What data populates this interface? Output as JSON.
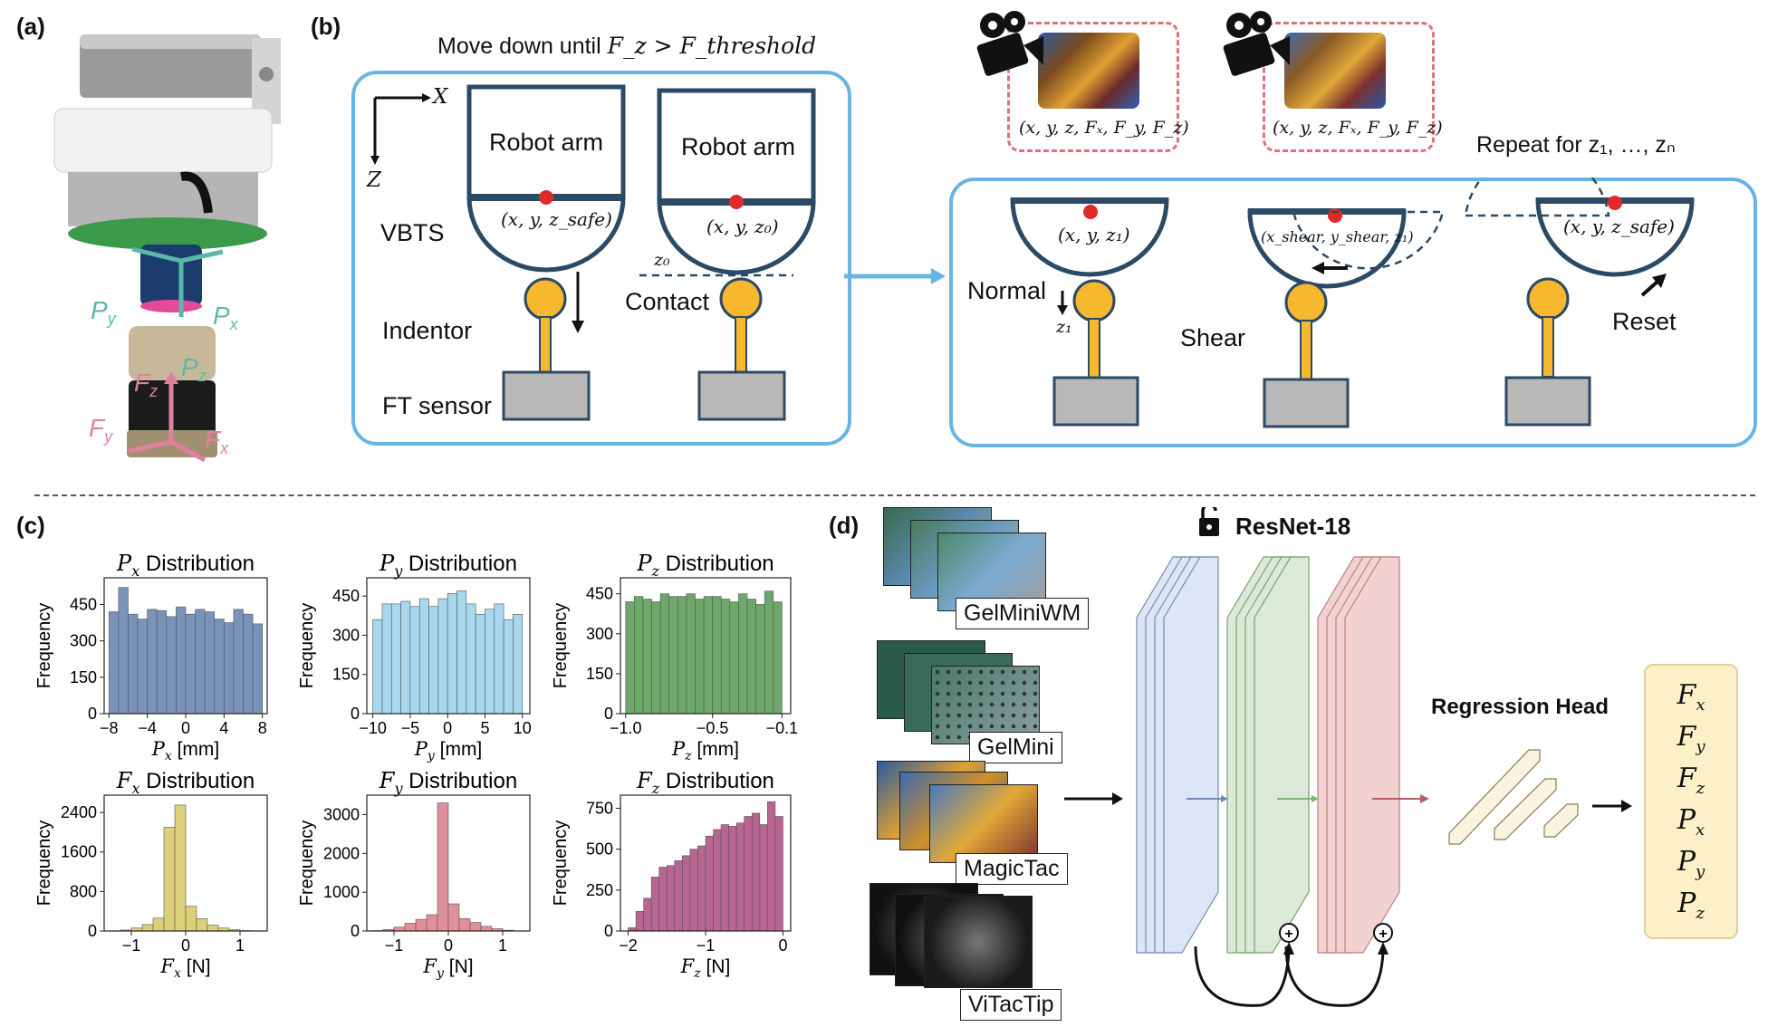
{
  "panels": {
    "a": "(a)",
    "b": "(b)",
    "c": "(c)",
    "d": "(d)"
  },
  "panel_a": {
    "Px": "P",
    "Py": "P",
    "Pz": "P",
    "Fx": "F",
    "Fy": "F",
    "Fz": "F"
  },
  "panel_b": {
    "move_down": "Move down until",
    "move_cond": "F_z > F_threshold",
    "axis_x": "X",
    "axis_z": "Z",
    "robot_arm": "Robot arm",
    "vbts": "VBTS",
    "indentor": "Indentor",
    "ft_sensor": "FT sensor",
    "contact": "Contact",
    "z0": "z₀",
    "pos_safe": "(x, y, z_safe)",
    "pos_z0": "(x, y, z₀)",
    "repeat": "Repeat for z₁, …, zₙ",
    "normal": "Normal",
    "shear": "Shear",
    "reset": "Reset",
    "z1": "z₁",
    "pos_z1": "(x, y, z₁)",
    "pos_shear": "(x_shear, y_shear, z₁)",
    "pos_reset": "(x, y, z_safe)",
    "record_normal": "(x, y, z, Fₓ, F_y, F_z)",
    "record_shear": "(x, y, z, Fₓ, F_y, F_z)"
  },
  "chart_data": [
    {
      "type": "bar",
      "title": "P_x Distribution",
      "xlabel": "P_x [mm]",
      "ylabel": "Frequency",
      "x_ticks": [
        -8,
        -4,
        0,
        4,
        8
      ],
      "y_ticks": [
        0,
        150,
        300,
        450
      ],
      "xlim": [
        -8.5,
        8.5
      ],
      "ylim": [
        0,
        560
      ],
      "bin_edges": [
        -8,
        -7,
        -6,
        -5,
        -4,
        -3,
        -2,
        -1,
        0,
        1,
        2,
        3,
        4,
        5,
        6,
        7,
        8
      ],
      "values": [
        420,
        520,
        410,
        390,
        430,
        425,
        400,
        440,
        410,
        430,
        420,
        390,
        375,
        430,
        410,
        370
      ],
      "color": "#7a93bb"
    },
    {
      "type": "bar",
      "title": "P_y Distribution",
      "xlabel": "P_y [mm]",
      "ylabel": "Frequency",
      "x_ticks": [
        -10,
        -5,
        0,
        5,
        10
      ],
      "y_ticks": [
        0,
        150,
        300,
        450
      ],
      "xlim": [
        -10.8,
        11
      ],
      "ylim": [
        0,
        520
      ],
      "bin_edges": [
        -10,
        -8.75,
        -7.5,
        -6.25,
        -5,
        -3.75,
        -2.5,
        -1.25,
        0,
        1.25,
        2.5,
        3.75,
        5,
        6.25,
        7.5,
        8.75,
        10
      ],
      "values": [
        360,
        420,
        420,
        430,
        410,
        440,
        410,
        440,
        460,
        470,
        420,
        380,
        400,
        420,
        360,
        380
      ],
      "color": "#a8d8ee"
    },
    {
      "type": "bar",
      "title": "P_z Distribution",
      "xlabel": "P_z [mm]",
      "ylabel": "Frequency",
      "x_ticks": [
        -1.0,
        -0.5,
        -0.1
      ],
      "x_tick_labels": [
        "−1.0",
        "−0.5",
        "−0.1"
      ],
      "y_ticks": [
        0,
        150,
        300,
        450
      ],
      "xlim": [
        -1.03,
        -0.05
      ],
      "ylim": [
        0,
        510
      ],
      "bin_edges": [
        -1.0,
        -0.95,
        -0.9,
        -0.85,
        -0.8,
        -0.75,
        -0.7,
        -0.65,
        -0.6,
        -0.55,
        -0.5,
        -0.45,
        -0.4,
        -0.35,
        -0.3,
        -0.25,
        -0.2,
        -0.15,
        -0.1
      ],
      "values": [
        420,
        440,
        430,
        420,
        450,
        440,
        440,
        450,
        430,
        440,
        440,
        430,
        420,
        450,
        430,
        410,
        460,
        420
      ],
      "color": "#6ea86a"
    },
    {
      "type": "bar",
      "title": "F_x Distribution",
      "xlabel": "F_x [N]",
      "ylabel": "Frequency",
      "x_ticks": [
        -1,
        0,
        1
      ],
      "y_ticks": [
        0,
        800,
        1600,
        2400
      ],
      "xlim": [
        -1.5,
        1.5
      ],
      "ylim": [
        0,
        2750
      ],
      "bin_edges": [
        -1.4,
        -1.2,
        -1.0,
        -0.8,
        -0.6,
        -0.4,
        -0.2,
        0,
        0.2,
        0.4,
        0.6,
        0.8,
        1.0,
        1.2,
        1.4
      ],
      "values": [
        5,
        20,
        60,
        130,
        260,
        2100,
        2550,
        500,
        250,
        120,
        60,
        25,
        8,
        3
      ],
      "color": "#ddd07a"
    },
    {
      "type": "bar",
      "title": "F_y Distribution",
      "xlabel": "F_y [N]",
      "ylabel": "Frequency",
      "x_ticks": [
        -1,
        0,
        1
      ],
      "y_ticks": [
        0,
        1000,
        2000,
        3000
      ],
      "xlim": [
        -1.5,
        1.5
      ],
      "ylim": [
        0,
        3500
      ],
      "bin_edges": [
        -1.4,
        -1.2,
        -1.0,
        -0.8,
        -0.6,
        -0.4,
        -0.2,
        0,
        0.2,
        0.4,
        0.6,
        0.8,
        1.0,
        1.2,
        1.4
      ],
      "values": [
        10,
        40,
        100,
        200,
        300,
        420,
        3300,
        700,
        320,
        220,
        120,
        60,
        20,
        5
      ],
      "color": "#e0909a"
    },
    {
      "type": "bar",
      "title": "F_z Distribution",
      "xlabel": "F_z [N]",
      "ylabel": "Frequency",
      "x_ticks": [
        -2,
        -1,
        0
      ],
      "y_ticks": [
        0,
        250,
        500,
        750
      ],
      "xlim": [
        -2.1,
        0.1
      ],
      "ylim": [
        0,
        830
      ],
      "bin_edges": [
        -2.0,
        -1.9,
        -1.8,
        -1.7,
        -1.6,
        -1.5,
        -1.4,
        -1.3,
        -1.2,
        -1.1,
        -1.0,
        -0.9,
        -0.8,
        -0.7,
        -0.6,
        -0.5,
        -0.4,
        -0.3,
        -0.2,
        -0.1,
        0
      ],
      "values": [
        20,
        120,
        200,
        330,
        390,
        400,
        430,
        460,
        500,
        520,
        580,
        620,
        650,
        640,
        660,
        700,
        720,
        650,
        790,
        700
      ],
      "color": "#b8658f"
    }
  ],
  "panel_d": {
    "resnet": "ResNet-18",
    "regression_head": "Regression Head",
    "inputs": [
      "GelMiniWM",
      "GelMini",
      "MagicTac",
      "ViTacTip"
    ],
    "outputs": [
      "F",
      "F",
      "F",
      "P",
      "P",
      "P"
    ],
    "output_subs": [
      "x",
      "y",
      "z",
      "x",
      "y",
      "z"
    ],
    "plus": "+"
  }
}
